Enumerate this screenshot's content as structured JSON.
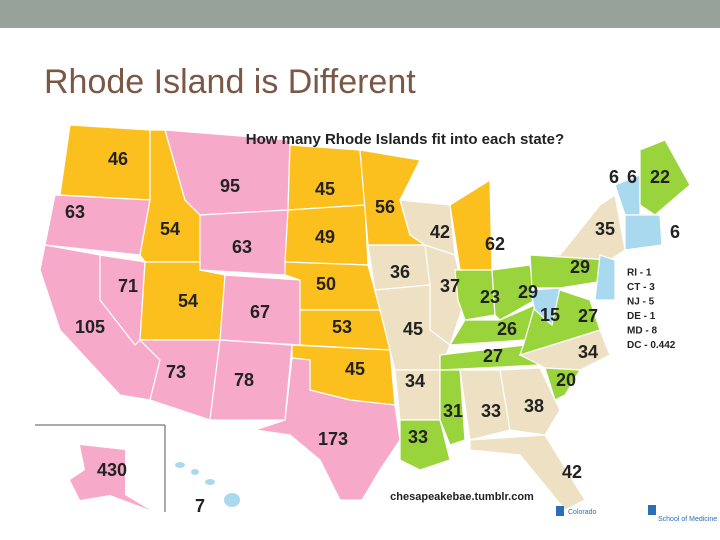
{
  "title": "Rhode Island is Different",
  "map": {
    "title": "How many Rhode Islands fit into each state?",
    "state_labels": [
      46,
      95,
      45,
      63,
      54,
      56,
      63,
      49,
      42,
      62,
      35,
      6,
      6,
      22,
      6,
      71,
      54,
      67,
      50,
      36,
      37,
      23,
      29,
      29,
      105,
      53,
      45,
      26,
      15,
      27,
      73,
      78,
      45,
      34,
      27,
      34,
      20,
      31,
      33,
      38,
      173,
      33,
      42,
      430,
      7
    ],
    "legend": [
      "RI - 1",
      "CT - 3",
      "NJ - 5",
      "DE - 1",
      "MD - 8",
      "DC - 0.442"
    ],
    "source": "chesapeakebae.tumblr.com",
    "logos": [
      "Colorado",
      "School of Medicine"
    ]
  }
}
